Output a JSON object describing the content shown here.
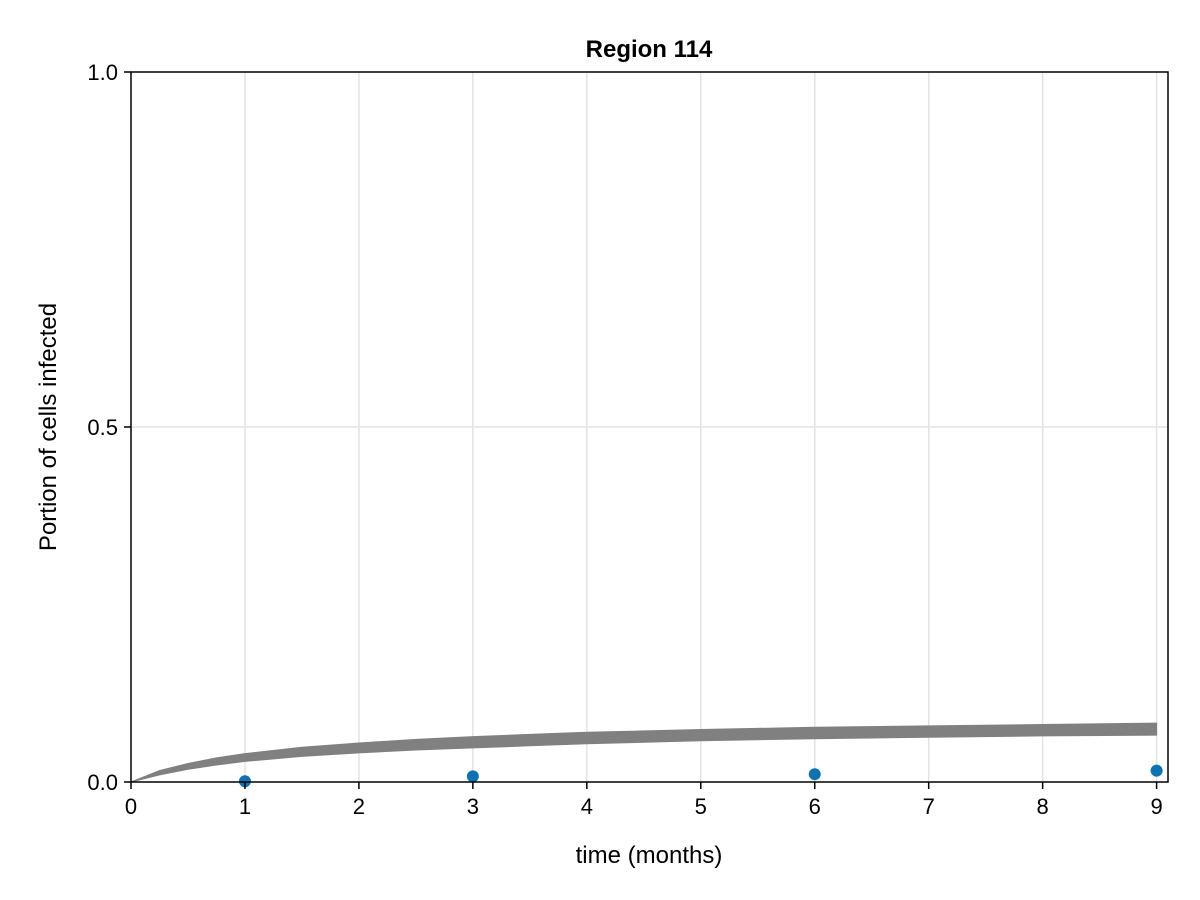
{
  "chart_data": {
    "type": "scatter",
    "title": "Region 114",
    "xlabel": "time (months)",
    "ylabel": "Portion of cells infected",
    "xlim": [
      0,
      9.1
    ],
    "ylim": [
      0,
      1.0
    ],
    "x_ticks": [
      0,
      1,
      2,
      3,
      4,
      5,
      6,
      7,
      8,
      9
    ],
    "x_tick_labels": [
      "0",
      "1",
      "2",
      "3",
      "4",
      "5",
      "6",
      "7",
      "8",
      "9"
    ],
    "y_ticks": [
      0,
      0.5,
      1.0
    ],
    "y_tick_labels": [
      "0.0",
      "0.5",
      "1.0"
    ],
    "grid": true,
    "series": [
      {
        "kind": "band",
        "color": "#808080",
        "x": [
          0,
          0.25,
          0.5,
          0.75,
          1,
          1.5,
          2,
          2.5,
          3,
          3.5,
          4,
          5,
          6,
          7,
          8,
          9
        ],
        "lower": [
          0,
          0.01,
          0.018,
          0.024,
          0.029,
          0.036,
          0.041,
          0.045,
          0.048,
          0.051,
          0.054,
          0.058,
          0.061,
          0.063,
          0.065,
          0.066
        ],
        "upper": [
          0,
          0.016,
          0.026,
          0.034,
          0.04,
          0.049,
          0.055,
          0.06,
          0.064,
          0.067,
          0.07,
          0.074,
          0.077,
          0.079,
          0.081,
          0.083
        ]
      },
      {
        "kind": "points",
        "color": "#0e72b0",
        "x": [
          1,
          3,
          6,
          9
        ],
        "y": [
          0.001,
          0.008,
          0.011,
          0.016
        ]
      }
    ]
  }
}
